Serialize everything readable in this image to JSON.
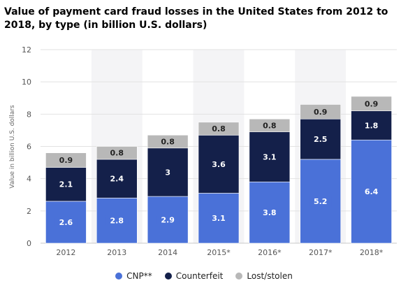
{
  "chart_data": {
    "type": "bar",
    "stacked": true,
    "title": "Value of payment card fraud losses in the United States from 2012 to 2018, by type (in billion U.S. dollars)",
    "ylabel": "Value in billion U.S. dollars",
    "xlabel": "",
    "ylim": [
      0,
      12
    ],
    "yticks": [
      0,
      2,
      4,
      6,
      8,
      10,
      12
    ],
    "grid": true,
    "legend_position": "bottom",
    "categories": [
      "2012",
      "2013",
      "2014",
      "2015*",
      "2016*",
      "2017*",
      "2018*"
    ],
    "series": [
      {
        "name": "CNP**",
        "color": "#4a71d8",
        "values": [
          2.6,
          2.8,
          2.9,
          3.1,
          3.8,
          5.2,
          6.4
        ]
      },
      {
        "name": "Counterfeit",
        "color": "#14204a",
        "values": [
          2.1,
          2.4,
          3,
          3.6,
          3.1,
          2.5,
          1.8
        ]
      },
      {
        "name": "Lost/stolen",
        "color": "#b8b8b8",
        "values": [
          0.9,
          0.8,
          0.8,
          0.8,
          0.8,
          0.9,
          0.9
        ]
      }
    ]
  }
}
